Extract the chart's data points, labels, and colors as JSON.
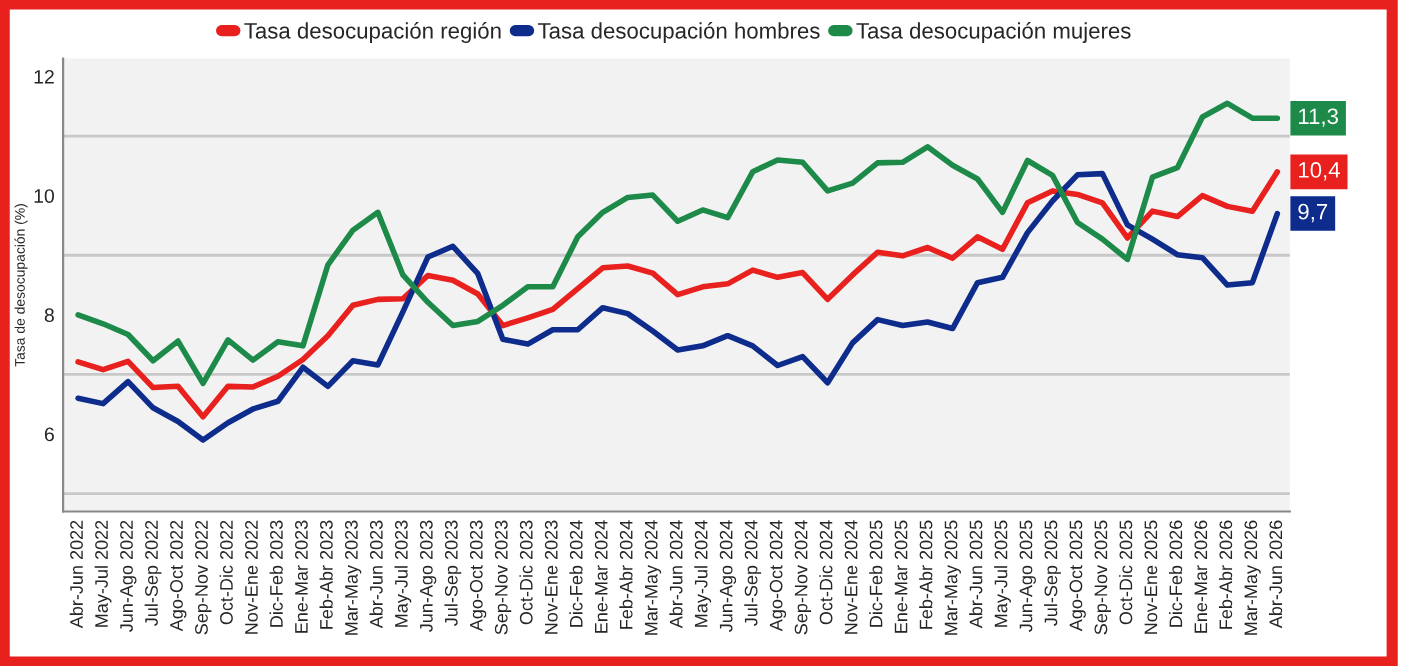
{
  "chart_data": {
    "type": "line",
    "ylabel": "Tasa de desocupación (%)",
    "categories": [
      "Abr-Jun 2022",
      "May-Jul 2022",
      "Jun-Ago 2022",
      "Jul-Sep 2022",
      "Ago-Oct 2022",
      "Sep-Nov 2022",
      "Oct-Dic 2022",
      "Nov-Ene 2022",
      "Dic-Feb 2023",
      "Ene-Mar 2023",
      "Feb-Abr 2023",
      "Mar-May 2023",
      "Abr-Jun 2023",
      "May-Jul 2023",
      "Jun-Ago 2023",
      "Jul-Sep 2023",
      "Ago-Oct 2023",
      "Sep-Nov 2023",
      "Oct-Dic 2023",
      "Nov-Ene 2023",
      "Dic-Feb 2024",
      "Ene-Mar 2024",
      "Feb-Abr 2024",
      "Mar-May 2024",
      "Abr-Jun 2024",
      "May-Jul 2024",
      "Jun-Ago 2024",
      "Jul-Sep 2024",
      "Ago-Oct 2024",
      "Sep-Nov 2024",
      "Oct-Dic 2024",
      "Nov-Ene 2024",
      "Dic-Feb 2025",
      "Ene-Mar 2025",
      "Feb-Abr 2025",
      "Mar-May 2025",
      "Abr-Jun 2025",
      "May-Jul 2025",
      "Jun-Ago 2025",
      "Jul-Sep 2025",
      "Ago-Oct 2025",
      "Sep-Nov 2025",
      "Oct-Dic 2025",
      "Nov-Ene 2025",
      "Dic-Feb 2026",
      "Ene-Mar 2026",
      "Feb-Abr 2026",
      "Mar-May 2026",
      "Abr-Jun 2026"
    ],
    "series": [
      {
        "name": "Tasa desocupación región",
        "color": "#e8201e",
        "values": [
          7.21,
          7.08,
          7.22,
          6.78,
          6.8,
          6.29,
          6.8,
          6.79,
          6.97,
          7.25,
          7.65,
          8.16,
          8.26,
          8.27,
          8.66,
          8.58,
          8.35,
          7.82,
          7.95,
          8.09,
          8.44,
          8.79,
          8.82,
          8.7,
          8.34,
          8.47,
          8.52,
          8.75,
          8.63,
          8.71,
          8.26,
          8.67,
          9.05,
          8.99,
          9.13,
          8.95,
          9.31,
          9.1,
          9.88,
          10.08,
          10.02,
          9.88,
          9.29,
          9.74,
          9.65,
          10.0,
          9.82,
          9.74,
          10.4
        ],
        "value_labels": [
          null,
          null,
          null,
          null,
          null,
          null,
          null,
          null,
          null,
          null,
          null,
          null,
          null,
          null,
          null,
          null,
          null,
          null,
          null,
          null,
          null,
          null,
          null,
          null,
          null,
          null,
          null,
          null,
          null,
          null,
          null,
          null,
          null,
          null,
          null,
          null,
          null,
          null,
          null,
          null,
          null,
          null,
          null,
          null,
          null,
          null,
          null,
          null,
          "10,4"
        ]
      },
      {
        "name": "Tasa desocupación hombres",
        "color": "#0d2c8c",
        "values": [
          6.6,
          6.51,
          6.88,
          6.44,
          6.21,
          5.9,
          6.19,
          6.42,
          6.55,
          7.12,
          6.8,
          7.23,
          7.16,
          8.05,
          8.97,
          9.15,
          8.69,
          7.59,
          7.51,
          7.75,
          7.75,
          8.12,
          8.02,
          7.73,
          7.41,
          7.48,
          7.65,
          7.48,
          7.15,
          7.3,
          6.86,
          7.53,
          7.92,
          7.82,
          7.88,
          7.77,
          8.54,
          8.63,
          9.38,
          9.91,
          10.35,
          10.37,
          9.51,
          9.27,
          9.01,
          8.96,
          8.5,
          8.54,
          9.7
        ],
        "value_labels": [
          null,
          null,
          null,
          null,
          null,
          null,
          null,
          null,
          null,
          null,
          null,
          null,
          null,
          null,
          null,
          null,
          null,
          null,
          null,
          null,
          null,
          null,
          null,
          null,
          null,
          null,
          null,
          null,
          null,
          null,
          null,
          null,
          null,
          null,
          null,
          null,
          null,
          null,
          null,
          null,
          null,
          null,
          null,
          null,
          null,
          null,
          null,
          null,
          "9,7"
        ]
      },
      {
        "name": "Tasa desocupación mujeres",
        "color": "#1e8a4a",
        "values": [
          8.0,
          7.85,
          7.67,
          7.23,
          7.56,
          6.85,
          7.58,
          7.24,
          7.55,
          7.48,
          8.84,
          9.42,
          9.72,
          8.67,
          8.21,
          7.82,
          7.89,
          8.16,
          8.47,
          8.47,
          9.31,
          9.72,
          9.97,
          10.01,
          9.57,
          9.76,
          9.63,
          10.4,
          10.6,
          10.56,
          10.08,
          10.21,
          10.55,
          10.56,
          10.82,
          10.51,
          10.28,
          9.72,
          10.59,
          10.34,
          9.55,
          9.27,
          8.93,
          10.31,
          10.47,
          11.32,
          11.55,
          11.3,
          11.3
        ],
        "value_labels": [
          null,
          null,
          null,
          null,
          null,
          null,
          null,
          null,
          null,
          null,
          null,
          null,
          null,
          null,
          null,
          null,
          null,
          null,
          null,
          null,
          null,
          null,
          null,
          null,
          null,
          null,
          null,
          null,
          null,
          null,
          null,
          null,
          null,
          null,
          null,
          null,
          null,
          null,
          null,
          null,
          null,
          null,
          null,
          null,
          null,
          null,
          null,
          null,
          "11,3"
        ]
      }
    ],
    "ylim": [
      4.7,
      12.3
    ],
    "yticks": [
      {
        "value": 5,
        "label": null
      },
      6,
      {
        "value": 7,
        "label": null
      },
      8,
      {
        "value": 9,
        "label": null
      },
      10,
      {
        "value": 11,
        "label": null
      },
      12
    ],
    "grid": "y",
    "legend": "top",
    "marker": "none",
    "line_style": "solid"
  }
}
